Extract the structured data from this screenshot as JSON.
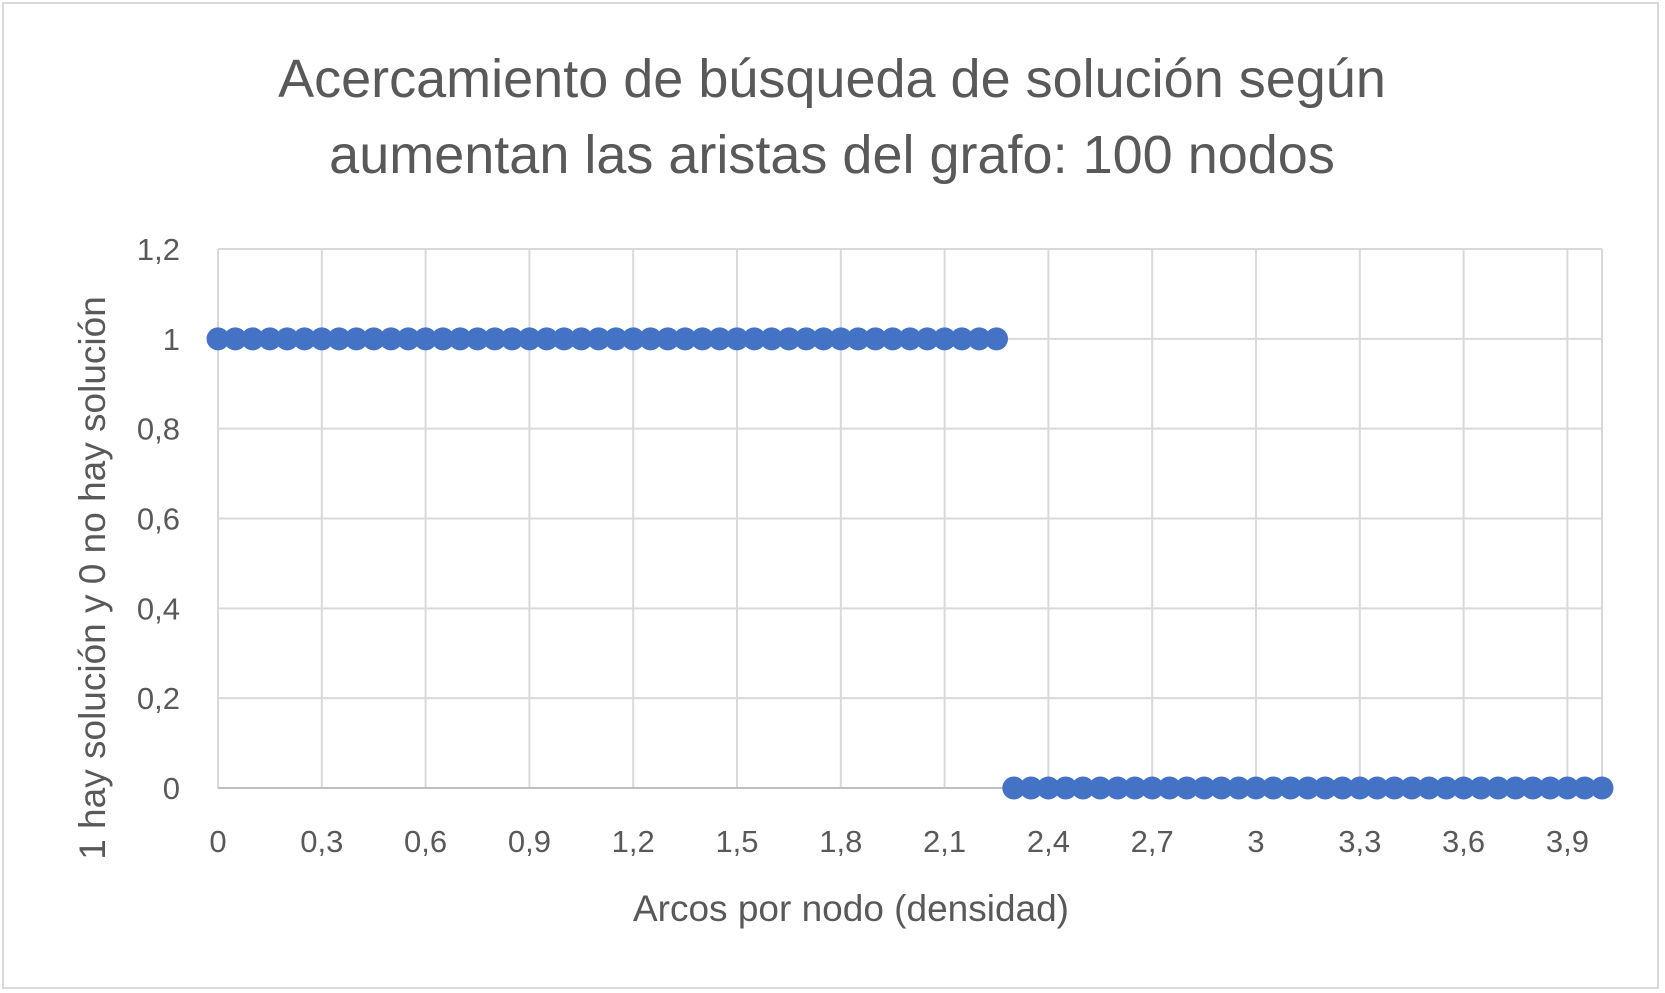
{
  "chart_data": {
    "type": "scatter",
    "title_lines": [
      "Acercamiento de búsqueda de solución según",
      "aumentan las aristas del grafo: 100 nodos"
    ],
    "xlabel": "Arcos por nodo (densidad)",
    "ylabel": "1 hay solución y 0 no hay solución",
    "xlim": [
      0,
      4.0
    ],
    "ylim": [
      0,
      1.2
    ],
    "x_ticks": [
      0,
      0.3,
      0.6,
      0.9,
      1.2,
      1.5,
      1.8,
      2.1,
      2.4,
      2.7,
      3,
      3.3,
      3.6,
      3.9
    ],
    "x_tick_labels": [
      "0",
      "0,3",
      "0,6",
      "0,9",
      "1,2",
      "1,5",
      "1,8",
      "2,1",
      "2,4",
      "2,7",
      "3",
      "3,3",
      "3,6",
      "3,9"
    ],
    "y_ticks": [
      0,
      0.2,
      0.4,
      0.6,
      0.8,
      1,
      1.2
    ],
    "y_tick_labels": [
      "0",
      "0,2",
      "0,4",
      "0,6",
      "0,8",
      "1",
      "1,2"
    ],
    "grid": true,
    "legend": "none",
    "marker_color": "#4472c4",
    "grid_color": "#d9d9d9",
    "series": [
      {
        "x": [
          0,
          0.05,
          0.1,
          0.15,
          0.2,
          0.25,
          0.3,
          0.35,
          0.4,
          0.45,
          0.5,
          0.55,
          0.6,
          0.65,
          0.7,
          0.75,
          0.8,
          0.85,
          0.9,
          0.95,
          1.0,
          1.05,
          1.1,
          1.15,
          1.2,
          1.25,
          1.3,
          1.35,
          1.4,
          1.45,
          1.5,
          1.55,
          1.6,
          1.65,
          1.7,
          1.75,
          1.8,
          1.85,
          1.9,
          1.95,
          2.0,
          2.05,
          2.1,
          2.15,
          2.2,
          2.25,
          2.3,
          2.35,
          2.4,
          2.45,
          2.5,
          2.55,
          2.6,
          2.65,
          2.7,
          2.75,
          2.8,
          2.85,
          2.9,
          2.95,
          3.0,
          3.05,
          3.1,
          3.15,
          3.2,
          3.25,
          3.3,
          3.35,
          3.4,
          3.45,
          3.5,
          3.55,
          3.6,
          3.65,
          3.7,
          3.75,
          3.8,
          3.85,
          3.9,
          3.95,
          4.0
        ],
        "y": [
          1,
          1,
          1,
          1,
          1,
          1,
          1,
          1,
          1,
          1,
          1,
          1,
          1,
          1,
          1,
          1,
          1,
          1,
          1,
          1,
          1,
          1,
          1,
          1,
          1,
          1,
          1,
          1,
          1,
          1,
          1,
          1,
          1,
          1,
          1,
          1,
          1,
          1,
          1,
          1,
          1,
          1,
          1,
          1,
          1,
          1,
          0,
          0,
          0,
          0,
          0,
          0,
          0,
          0,
          0,
          0,
          0,
          0,
          0,
          0,
          0,
          0,
          0,
          0,
          0,
          0,
          0,
          0,
          0,
          0,
          0,
          0,
          0,
          0,
          0,
          0,
          0,
          0,
          0,
          0,
          0
        ]
      }
    ]
  }
}
